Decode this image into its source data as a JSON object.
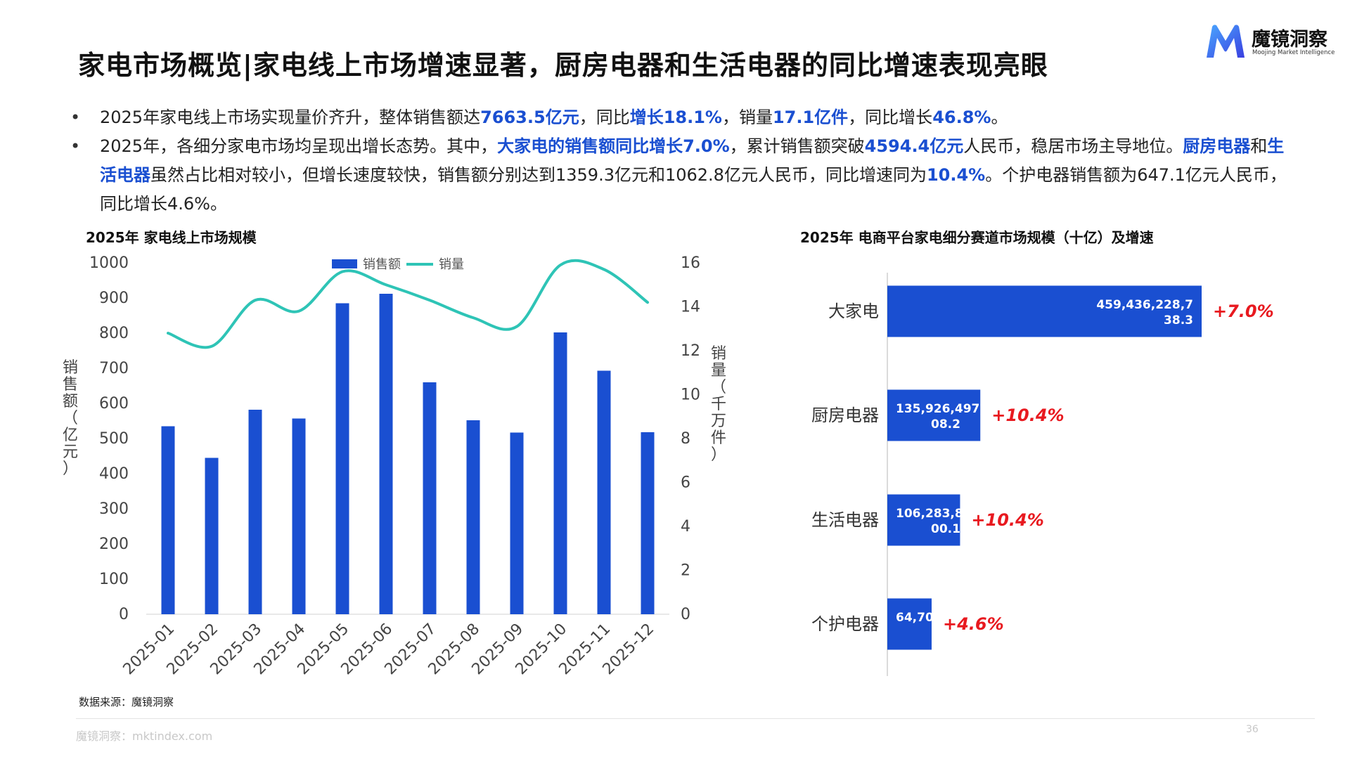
{
  "header": {
    "title": "家电市场概览|家电线上市场增速显著，厨房电器和生活电器的同比增速表现亮眼",
    "logo_cn": "魔镜洞察",
    "logo_en": "Moojing Market Intelligence"
  },
  "bullets": {
    "b1": {
      "t1": "2025年家电线上市场实现量价齐升，整体销售额达",
      "h1": "7663.5亿元",
      "t2": "，同比",
      "h2": "增长18.1%",
      "t3": "，销量",
      "h3": "17.1亿件",
      "t4": "，同比增长",
      "h4": "46.8%",
      "t5": "。"
    },
    "b2": {
      "t1": "2025年，各细分家电市场均呈现出增长态势。其中，",
      "h1": "大家电的销售额同比增长7.0%",
      "t2": "，累计销售额突破",
      "h2": "4594.4亿元",
      "t3": "人民币，稳居市场主导地位。",
      "h3": "厨房电器",
      "t4": "和",
      "h4": "生活电器",
      "t5": "虽然占比相对较小，但增长速度较快，销售额分别达到1359.3亿元和1062.8亿元人民币，同比增速同为",
      "h5": "10.4%",
      "t6": "。个护电器销售额为647.1亿元人民币，同比增长4.6%。"
    },
    "bullet_symbol": "•"
  },
  "colors": {
    "bar": "#1a4fd1",
    "line": "#2ec4b6",
    "growth": "#e8191f",
    "highlight": "#1a4fd1"
  },
  "chart_data": [
    {
      "type": "bar+line",
      "title": "2025年 家电线上市场规模",
      "categories": [
        "2025-01",
        "2025-02",
        "2025-03",
        "2025-04",
        "2025-05",
        "2025-06",
        "2025-07",
        "2025-08",
        "2025-09",
        "2025-10",
        "2025-11",
        "2025-12"
      ],
      "series": [
        {
          "name": "销售额",
          "type": "bar",
          "axis": "left",
          "values": [
            535,
            445,
            582,
            557,
            885,
            912,
            660,
            552,
            517,
            802,
            693,
            518
          ]
        },
        {
          "name": "销量",
          "type": "line",
          "axis": "right",
          "values": [
            12.8,
            12.2,
            14.3,
            13.8,
            15.6,
            15.0,
            14.3,
            13.5,
            13.1,
            15.9,
            15.7,
            14.2
          ]
        }
      ],
      "ylabel": "销售额（亿元）",
      "y2label": "销量（千万件）",
      "ylim": [
        0,
        1000
      ],
      "yticks": [
        "0",
        "100",
        "200",
        "300",
        "400",
        "500",
        "600",
        "700",
        "800",
        "900",
        "1000"
      ],
      "y2lim": [
        0,
        16
      ],
      "y2ticks": [
        "0",
        "2",
        "4",
        "6",
        "8",
        "10",
        "12",
        "14",
        "16"
      ],
      "legend": "top-center",
      "grid": false
    },
    {
      "type": "bar",
      "orientation": "horizontal",
      "title": "2025年 电商平台家电细分赛道市场规模（十亿）及增速",
      "categories": [
        "大家电",
        "厨房电器",
        "生活电器",
        "个护电器"
      ],
      "values": [
        459.4,
        135.9,
        106.3,
        64.7
      ],
      "data_labels": [
        "459,436,228,7 38.3",
        "135,926,497, 08.2",
        "106,283,8 00.1",
        "64,70"
      ],
      "growth_labels": [
        "+7.0%",
        "+10.4%",
        "+10.4%",
        "+4.6%"
      ],
      "xlim": [
        0,
        500
      ],
      "grid": false
    }
  ],
  "footer": {
    "source": "数据来源：魔镜洞察",
    "site": "魔镜洞察：mktindex.com",
    "page": "36"
  }
}
